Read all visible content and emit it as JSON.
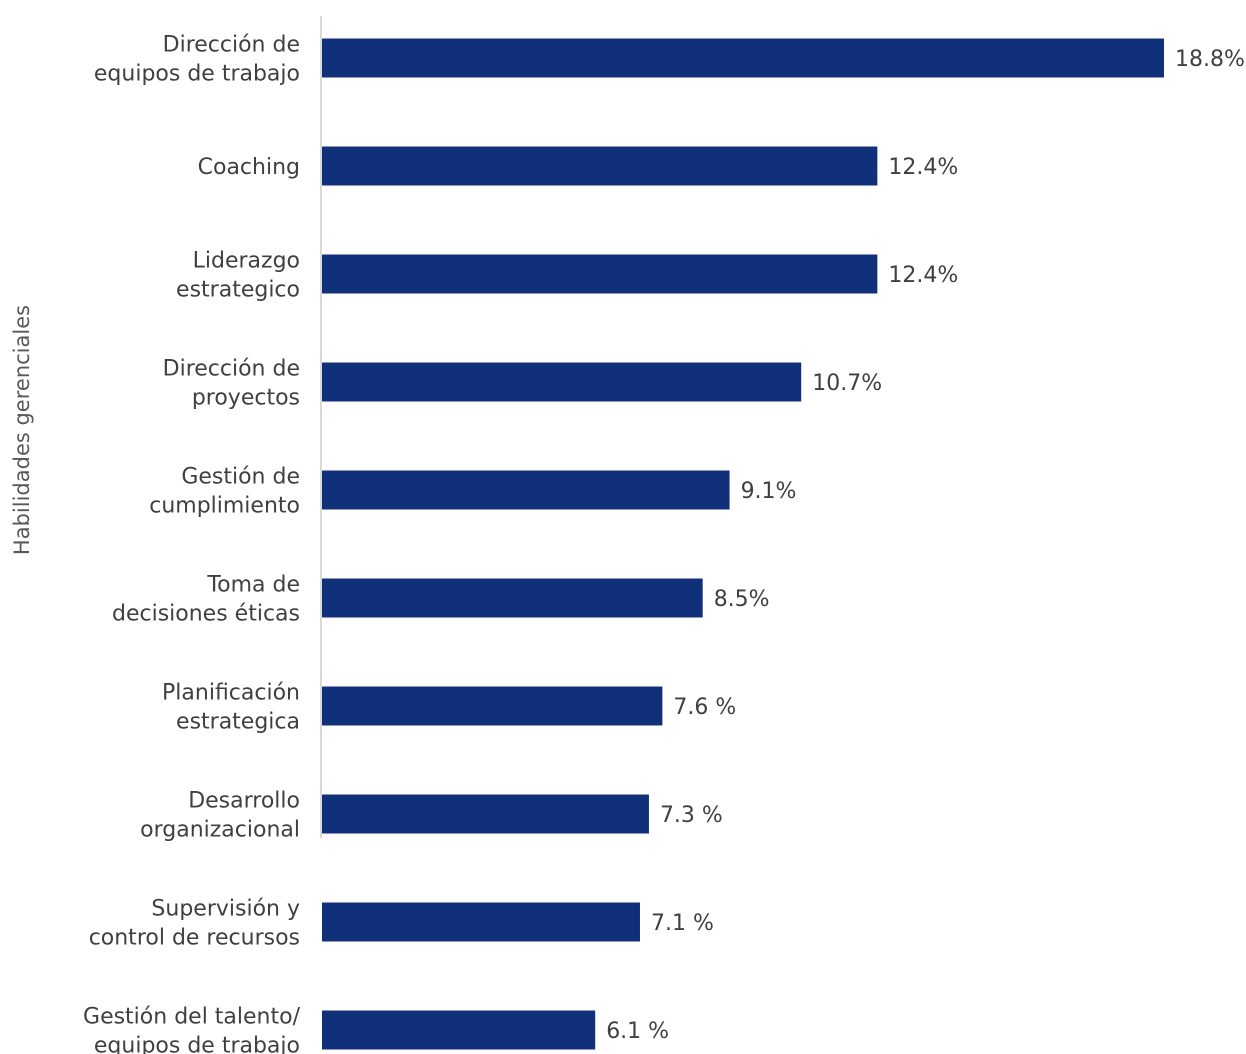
{
  "chart_data": {
    "type": "bar",
    "orientation": "horizontal",
    "ylabel": "Habilidades gerenciales",
    "xlabel": "",
    "title": "",
    "categories": [
      [
        "Dirección de",
        "equipos de trabajo"
      ],
      [
        "Coaching"
      ],
      [
        "Liderazgo",
        "estrategico"
      ],
      [
        "Dirección de",
        "proyectos"
      ],
      [
        "Gestión de",
        "cumplimiento"
      ],
      [
        "Toma de",
        "decisiones éticas"
      ],
      [
        "Planificación",
        "estrategica"
      ],
      [
        "Desarrollo",
        "organizacional"
      ],
      [
        "Supervisión y",
        "control de recursos"
      ],
      [
        "Gestión del talento/",
        "equipos de trabajo"
      ]
    ],
    "values": [
      18.8,
      12.4,
      12.4,
      10.7,
      9.1,
      8.5,
      7.6,
      7.3,
      7.1,
      6.1
    ],
    "value_labels": [
      "18.8%",
      "12.4%",
      "12.4%",
      "10.7%",
      "9.1%",
      "8.5%",
      "7.6 %",
      "7.3 %",
      "7.1 %",
      "6.1 %"
    ],
    "xlim": [
      0,
      18.8
    ],
    "grid": false,
    "legend": "none",
    "bar_color": "#10317a",
    "axis_color": "#d9d9d9"
  }
}
